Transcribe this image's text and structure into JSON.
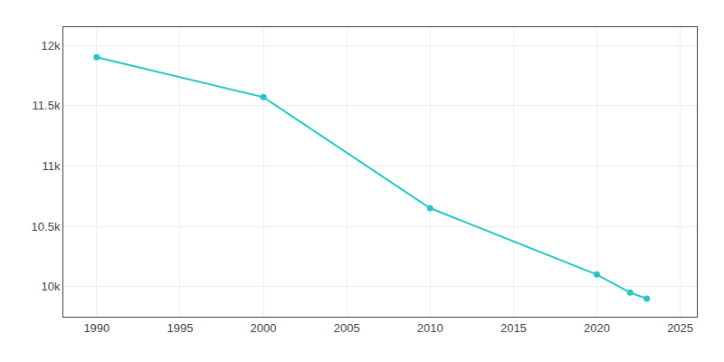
{
  "chart_data": {
    "type": "line",
    "x": [
      1990,
      2000,
      2010,
      2020,
      2022,
      2023
    ],
    "values": [
      11900,
      11570,
      10650,
      10100,
      9950,
      9900
    ],
    "color": "#26C6C6",
    "marker": "circle",
    "xlim": [
      1988,
      2026
    ],
    "ylim": [
      9750,
      12150
    ],
    "xticks": [
      1990,
      1995,
      2000,
      2005,
      2010,
      2015,
      2020,
      2025
    ],
    "yticks": [
      {
        "value": 10000,
        "label": "10k"
      },
      {
        "value": 10500,
        "label": "10.5k"
      },
      {
        "value": 11000,
        "label": "11k"
      },
      {
        "value": 11500,
        "label": "11.5k"
      },
      {
        "value": 12000,
        "label": "12k"
      }
    ],
    "grid": true
  }
}
